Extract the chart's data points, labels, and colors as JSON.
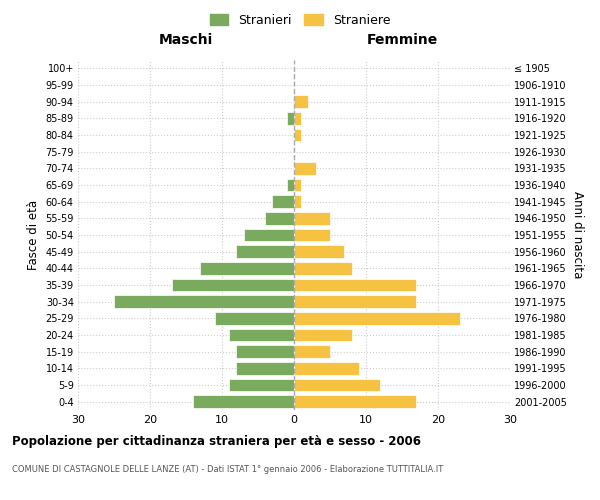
{
  "age_groups": [
    "0-4",
    "5-9",
    "10-14",
    "15-19",
    "20-24",
    "25-29",
    "30-34",
    "35-39",
    "40-44",
    "45-49",
    "50-54",
    "55-59",
    "60-64",
    "65-69",
    "70-74",
    "75-79",
    "80-84",
    "85-89",
    "90-94",
    "95-99",
    "100+"
  ],
  "birth_years": [
    "2001-2005",
    "1996-2000",
    "1991-1995",
    "1986-1990",
    "1981-1985",
    "1976-1980",
    "1971-1975",
    "1966-1970",
    "1961-1965",
    "1956-1960",
    "1951-1955",
    "1946-1950",
    "1941-1945",
    "1936-1940",
    "1931-1935",
    "1926-1930",
    "1921-1925",
    "1916-1920",
    "1911-1915",
    "1906-1910",
    "≤ 1905"
  ],
  "males": [
    14,
    9,
    8,
    8,
    9,
    11,
    25,
    17,
    13,
    8,
    7,
    4,
    3,
    1,
    0,
    0,
    0,
    1,
    0,
    0,
    0
  ],
  "females": [
    17,
    12,
    9,
    5,
    8,
    23,
    17,
    17,
    8,
    7,
    5,
    5,
    1,
    1,
    3,
    0,
    1,
    1,
    2,
    0,
    0
  ],
  "male_color": "#7aaa5e",
  "female_color": "#f5c242",
  "bg_color": "#ffffff",
  "grid_color": "#cccccc",
  "bar_edge_color": "#ffffff",
  "title": "Popolazione per cittadinanza straniera per età e sesso - 2006",
  "subtitle": "COMUNE DI CASTAGNOLE DELLE LANZE (AT) - Dati ISTAT 1° gennaio 2006 - Elaborazione TUTTITALIA.IT",
  "xlabel_left": "Maschi",
  "xlabel_right": "Femmine",
  "ylabel_left": "Fasce di età",
  "ylabel_right": "Anni di nascita",
  "legend_male": "Stranieri",
  "legend_female": "Straniere",
  "xlim": 30
}
